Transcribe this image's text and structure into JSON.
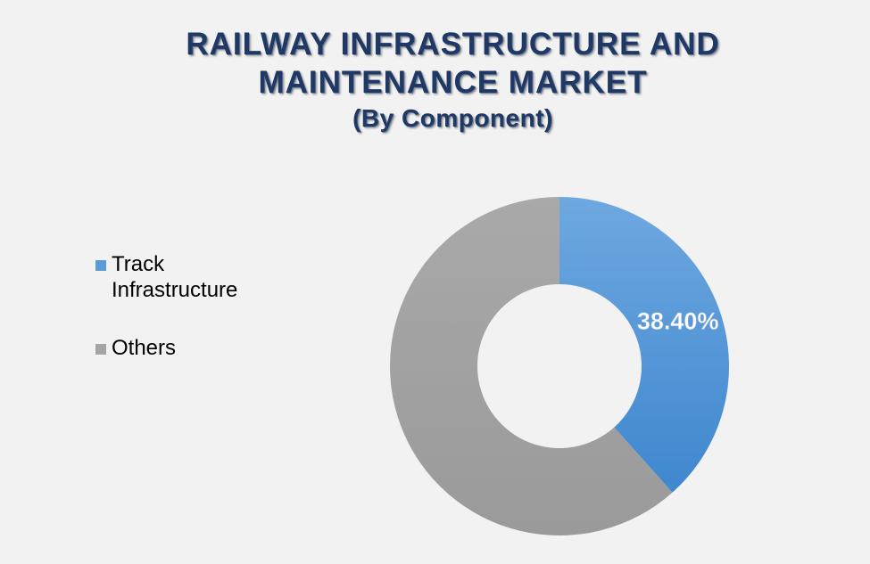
{
  "chart_data": {
    "type": "pie",
    "title": "RAILWAY INFRASTRUCTURE AND",
    "title_line2": "MAINTENANCE MARKET",
    "subtitle": "(By Component)",
    "categories": [
      "Track Infrastructure",
      "Others"
    ],
    "values": [
      38.4,
      61.6
    ],
    "data_labels": [
      "38.40%",
      ""
    ],
    "colors": [
      "#5b9bd5",
      "#a5a5a5"
    ],
    "donut": true,
    "legend_position": "left"
  }
}
